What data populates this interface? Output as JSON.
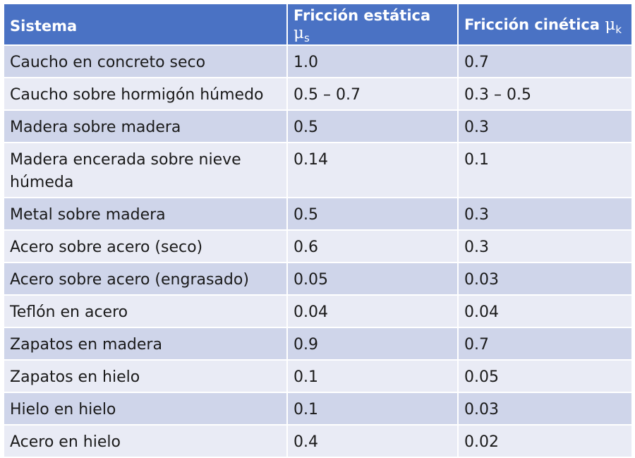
{
  "table": {
    "headers": {
      "system": "Sistema",
      "static": {
        "label": "Fricción estática ",
        "symbol": "μ",
        "subscript": "s"
      },
      "kinetic": {
        "label": "Fricción cinética ",
        "symbol": "μ",
        "subscript": "k"
      }
    },
    "rows": [
      {
        "system": "Caucho en concreto seco",
        "static": "1.0",
        "kinetic": "0.7"
      },
      {
        "system": "Caucho sobre hormigón húmedo",
        "static": "0.5 – 0.7",
        "kinetic": "0.3 – 0.5"
      },
      {
        "system": "Madera sobre madera",
        "static": "0.5",
        "kinetic": "0.3"
      },
      {
        "system": "Madera encerada sobre nieve húmeda",
        "static": "0.14",
        "kinetic": "0.1"
      },
      {
        "system": "Metal sobre madera",
        "static": "0.5",
        "kinetic": "0.3"
      },
      {
        "system": "Acero sobre acero (seco)",
        "static": "0.6",
        "kinetic": "0.3"
      },
      {
        "system": "Acero sobre acero (engrasado)",
        "static": "0.05",
        "kinetic": "0.03"
      },
      {
        "system": "Teflón en acero",
        "static": "0.04",
        "kinetic": "0.04"
      },
      {
        "system": "Zapatos en madera",
        "static": "0.9",
        "kinetic": "0.7"
      },
      {
        "system": "Zapatos en hielo",
        "static": "0.1",
        "kinetic": "0.05"
      },
      {
        "system": "Hielo en hielo",
        "static": "0.1",
        "kinetic": "0.03"
      },
      {
        "system": "Acero en hielo",
        "static": "0.4",
        "kinetic": "0.02"
      }
    ]
  },
  "colors": {
    "header": "#4a72c4",
    "row_dark": "#cfd5ea",
    "row_light": "#e9ebf5"
  }
}
